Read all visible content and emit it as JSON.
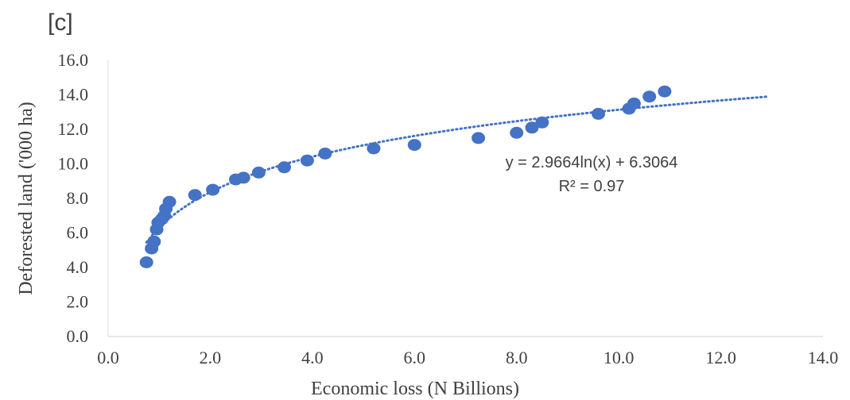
{
  "chart_data": {
    "type": "scatter",
    "panel_label": "[c]",
    "xlabel": "Economic loss (N Billions)",
    "ylabel": "Deforested land ('000 ha)",
    "xlim": [
      0,
      14
    ],
    "ylim": [
      0,
      16
    ],
    "xticks": [
      "0.0",
      "2.0",
      "4.0",
      "6.0",
      "8.0",
      "10.0",
      "12.0",
      "14.0"
    ],
    "yticks": [
      "0.0",
      "2.0",
      "4.0",
      "6.0",
      "8.0",
      "10.0",
      "12.0",
      "14.0",
      "16.0"
    ],
    "grid": false,
    "series": [
      {
        "color": "#4472c4",
        "points": [
          [
            0.75,
            4.3
          ],
          [
            0.85,
            5.1
          ],
          [
            0.9,
            5.5
          ],
          [
            0.95,
            6.2
          ],
          [
            0.98,
            6.6
          ],
          [
            1.05,
            6.8
          ],
          [
            1.1,
            7.0
          ],
          [
            1.13,
            7.4
          ],
          [
            1.2,
            7.8
          ],
          [
            1.7,
            8.2
          ],
          [
            2.05,
            8.5
          ],
          [
            2.5,
            9.1
          ],
          [
            2.65,
            9.2
          ],
          [
            2.95,
            9.5
          ],
          [
            3.45,
            9.8
          ],
          [
            3.9,
            10.2
          ],
          [
            4.25,
            10.6
          ],
          [
            5.2,
            10.9
          ],
          [
            6.0,
            11.1
          ],
          [
            7.25,
            11.5
          ],
          [
            8.0,
            11.8
          ],
          [
            8.3,
            12.1
          ],
          [
            8.5,
            12.4
          ],
          [
            9.6,
            12.9
          ],
          [
            10.2,
            13.2
          ],
          [
            10.3,
            13.5
          ],
          [
            10.6,
            13.9
          ],
          [
            10.9,
            14.2
          ]
        ]
      }
    ],
    "trendline": {
      "type": "logarithmic",
      "a": 2.9664,
      "b": 6.3064,
      "x_range": [
        0.75,
        12.9
      ],
      "style": "dotted",
      "color": "#4472c4"
    },
    "annotations": [
      "y = 2.9664ln(x) + 6.3064",
      "R² = 0.97"
    ]
  }
}
